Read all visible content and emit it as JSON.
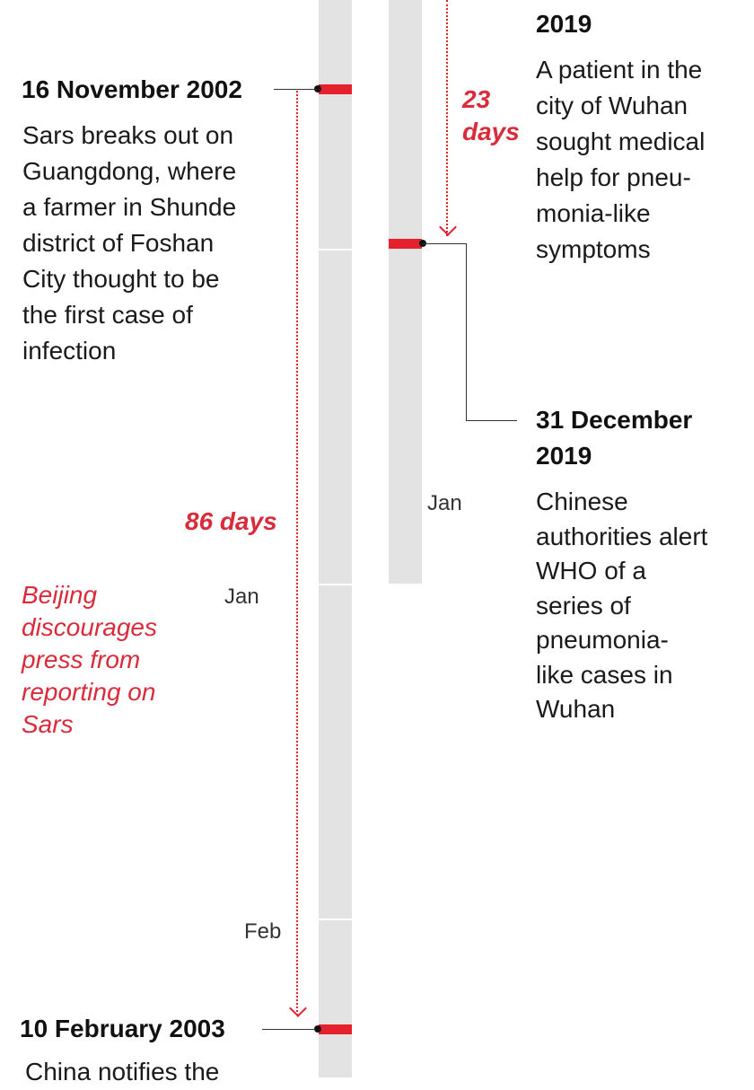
{
  "colors": {
    "accent_red": "#e5212e",
    "bar_grey": "#e3e3e3",
    "text": "#1a1a1a"
  },
  "sars": {
    "outbreak": {
      "date": "16 November 2002",
      "text": "Sars breaks out on\nGuangdong, where\na farmer in Shunde\ndistrict of Foshan\nCity thought to be\nthe first case of\ninfection"
    },
    "interval_label": "86 days",
    "note": "Beijing\ndiscourages\npress from\nreporting on\nSars",
    "month_labels": [
      "Jan",
      "Feb"
    ],
    "notification": {
      "date": "10 February 2003",
      "text": "China notifies the"
    }
  },
  "covid": {
    "first_patient": {
      "date_fragment": "2019",
      "text": "A patient in the\ncity of Wuhan\nsought medical\nhelp for pneu-\nmonia-like\nsymptoms"
    },
    "interval_label": "23\ndays",
    "month_label": "Jan",
    "who_alert": {
      "date": "31 December\n2019",
      "text": "Chinese\nauthorities alert\nWHO of a\nseries of\npneumonia-\nlike cases in\nWuhan"
    }
  }
}
